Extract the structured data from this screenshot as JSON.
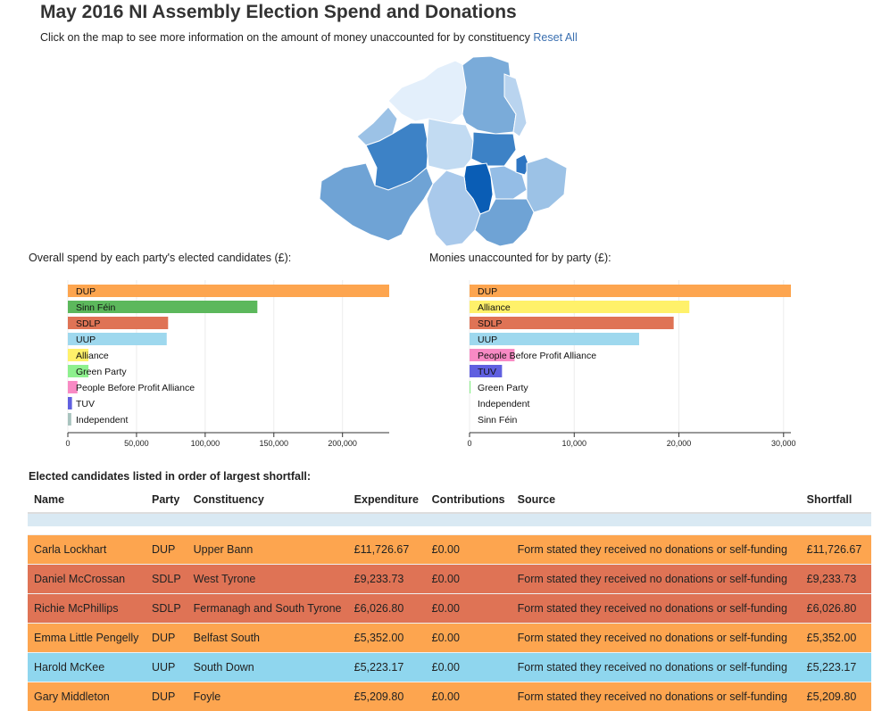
{
  "header": {
    "title": "May 2016 NI Assembly Election Spend and Donations",
    "subtitle": "Click on the map to see more information on the amount of money unaccounted for by constituency",
    "reset_label": "Reset All"
  },
  "colors": {
    "DUP": "#fda54f",
    "Sinn Féin": "#5cb85c",
    "SDLP": "#df7355",
    "UUP": "#9ed8ee",
    "Alliance": "#fff16a",
    "Green Party": "#8ef08e",
    "People Before Profit Alliance": "#f88ac4",
    "TUV": "#6060e0",
    "Independent": "#a9c4bf"
  },
  "chart_data": [
    {
      "type": "bar",
      "orientation": "horizontal",
      "title": "Overall spend by each party's elected candidates (£):",
      "categories": [
        "DUP",
        "Sinn Féin",
        "SDLP",
        "UUP",
        "Alliance",
        "Green Party",
        "People Before Profit Alliance",
        "TUV",
        "Independent"
      ],
      "values": [
        234000,
        138000,
        73000,
        72000,
        15000,
        15000,
        7000,
        3000,
        2500
      ],
      "xlim": [
        0,
        234000
      ],
      "ticks": [
        0,
        50000,
        100000,
        150000,
        200000
      ],
      "tick_labels": [
        "0",
        "50,000",
        "100,000",
        "150,000",
        "200,000"
      ],
      "grid": true
    },
    {
      "type": "bar",
      "orientation": "horizontal",
      "title": "Monies unaccounted for by party (£):",
      "categories": [
        "DUP",
        "Alliance",
        "SDLP",
        "UUP",
        "People Before Profit Alliance",
        "TUV",
        "Green Party",
        "Independent",
        "Sinn Féin"
      ],
      "values": [
        30700,
        21000,
        19500,
        16200,
        4300,
        3100,
        100,
        0,
        0
      ],
      "xlim": [
        0,
        30700
      ],
      "ticks": [
        0,
        10000,
        20000,
        30000
      ],
      "tick_labels": [
        "0",
        "10,000",
        "20,000",
        "30,000"
      ],
      "grid": true
    }
  ],
  "table": {
    "heading": "Elected candidates listed in order of largest shortfall:",
    "columns": [
      "Name",
      "Party",
      "Constituency",
      "Expenditure",
      "Contributions",
      "Source",
      "Shortfall"
    ],
    "rows": [
      [
        "Carla Lockhart",
        "DUP",
        "Upper Bann",
        "£11,726.67",
        "£0.00",
        "Form stated they received no donations or self-funding",
        "£11,726.67"
      ],
      [
        "Daniel McCrossan",
        "SDLP",
        "West Tyrone",
        "£9,233.73",
        "£0.00",
        "Form stated they received no donations or self-funding",
        "£9,233.73"
      ],
      [
        "Richie McPhillips",
        "SDLP",
        "Fermanagh and South Tyrone",
        "£6,026.80",
        "£0.00",
        "Form stated they received no donations or self-funding",
        "£6,026.80"
      ],
      [
        "Emma Little Pengelly",
        "DUP",
        "Belfast South",
        "£5,352.00",
        "£0.00",
        "Form stated they received no donations or self-funding",
        "£5,352.00"
      ],
      [
        "Harold McKee",
        "UUP",
        "South Down",
        "£5,223.17",
        "£0.00",
        "Form stated they received no donations or self-funding",
        "£5,223.17"
      ],
      [
        "Gary Middleton",
        "DUP",
        "Foyle",
        "£5,209.80",
        "£0.00",
        "Form stated they received no donations or self-funding",
        "£5,209.80"
      ]
    ],
    "row_colors": [
      "#fda54f",
      "#df7355",
      "#df7355",
      "#fda54f",
      "#8fd6ee",
      "#fda54f"
    ]
  }
}
